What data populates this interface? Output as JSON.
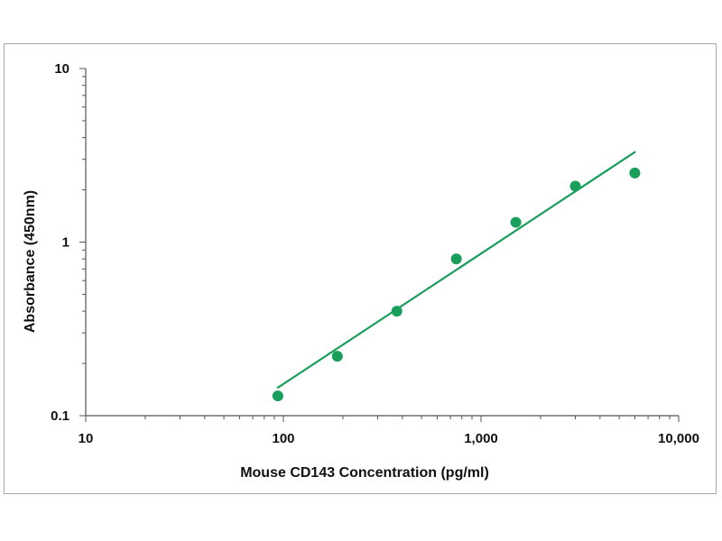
{
  "chart_data": {
    "type": "scatter",
    "title": "",
    "xlabel": "Mouse CD143 Concentration (pg/ml)",
    "ylabel": "Absorbance (450nm)",
    "x_scale": "log",
    "y_scale": "log",
    "xlim": [
      10,
      10000
    ],
    "ylim": [
      0.1,
      10
    ],
    "x_ticks": [
      10,
      100,
      1000,
      10000
    ],
    "x_tick_labels": [
      "10",
      "100",
      "1,000",
      "10,000"
    ],
    "y_ticks": [
      0.1,
      1,
      10
    ],
    "y_tick_labels": [
      "0.1",
      "1",
      "10"
    ],
    "grid": false,
    "legend": "none",
    "series": [
      {
        "x": [
          93.75,
          187.5,
          375,
          750,
          1500,
          3000,
          6000
        ],
        "y": [
          0.13,
          0.22,
          0.4,
          0.8,
          1.3,
          2.1,
          2.5
        ]
      }
    ],
    "fit_line": {
      "x": [
        93.75,
        6000
      ],
      "y": [
        0.145,
        3.3
      ]
    },
    "colors": {
      "points": "#1a9e5c",
      "line": "#1a9e5c",
      "axis": "#555555"
    }
  }
}
